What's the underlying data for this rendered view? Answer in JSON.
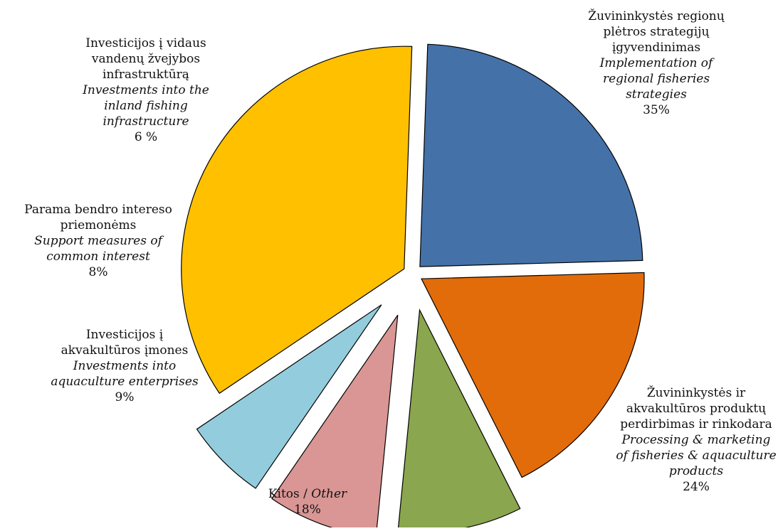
{
  "chart_data": {
    "type": "pie",
    "title": "",
    "slices": [
      {
        "lt_label": [
          "Žuvininkystės regionų",
          "plėtros strategijų",
          "įgyvendinimas"
        ],
        "en_label": [
          "Implementation of",
          "regional fisheries",
          "strategies"
        ],
        "percent_label": "35%",
        "value": 35,
        "color": "#FFC000"
      },
      {
        "lt_label": [
          "Žuvininkystės ir",
          "akvakultūros produktų",
          "perdirbimas ir rinkodara"
        ],
        "en_label": [
          "Processing & marketing",
          "of fisheries & aquaculture",
          "products"
        ],
        "percent_label": "24%",
        "value": 24,
        "color": "#4472A8"
      },
      {
        "lt_label": [
          "Kitos / "
        ],
        "en_label": [
          "Other"
        ],
        "percent_label": "18%",
        "value": 18,
        "color": "#E36C0A"
      },
      {
        "lt_label": [
          "Investicijos į",
          "akvakultūros įmones"
        ],
        "en_label": [
          "Investments into",
          "aquaculture enterprises"
        ],
        "percent_label": "9%",
        "value": 9,
        "color": "#8AA64E"
      },
      {
        "lt_label": [
          "Parama bendro intereso",
          "priemonėms"
        ],
        "en_label": [
          "Support measures of",
          "common interest"
        ],
        "percent_label": "8%",
        "value": 8,
        "color": "#D99694"
      },
      {
        "lt_label": [
          "Investicijos į vidaus",
          "vandenų žvejybos",
          "infrastruktūrą"
        ],
        "en_label": [
          "Investments into the",
          "inland fishing",
          "infrastructure"
        ],
        "percent_label": "6 %",
        "value": 6,
        "color": "#93CDDD"
      }
    ]
  }
}
